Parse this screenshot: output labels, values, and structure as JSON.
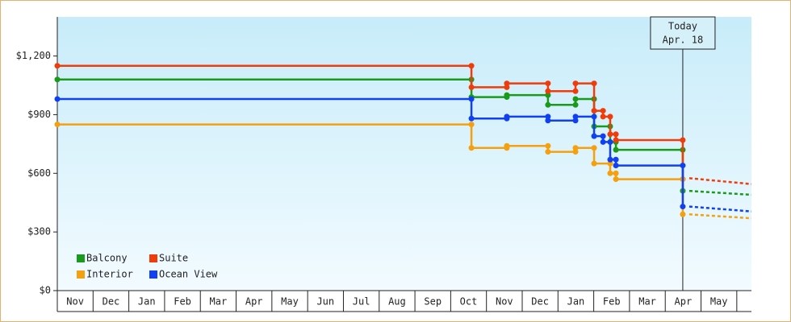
{
  "chart_data": {
    "type": "step-line",
    "xlim": [
      0,
      19.41
    ],
    "ylim": [
      0,
      1400
    ],
    "xticks": [
      {
        "value": 0.5,
        "label": "Nov"
      },
      {
        "value": 1.5,
        "label": "Dec"
      },
      {
        "value": 2.5,
        "label": "Jan"
      },
      {
        "value": 3.5,
        "label": "Feb"
      },
      {
        "value": 4.5,
        "label": "Mar"
      },
      {
        "value": 5.5,
        "label": "Apr"
      },
      {
        "value": 6.5,
        "label": "May"
      },
      {
        "value": 7.5,
        "label": "Jun"
      },
      {
        "value": 8.5,
        "label": "Jul"
      },
      {
        "value": 9.5,
        "label": "Aug"
      },
      {
        "value": 10.5,
        "label": "Sep"
      },
      {
        "value": 11.5,
        "label": "Oct"
      },
      {
        "value": 12.5,
        "label": "Nov"
      },
      {
        "value": 13.5,
        "label": "Dec"
      },
      {
        "value": 14.5,
        "label": "Jan"
      },
      {
        "value": 15.5,
        "label": "Feb"
      },
      {
        "value": 16.5,
        "label": "Mar"
      },
      {
        "value": 17.5,
        "label": "Apr"
      },
      {
        "value": 18.5,
        "label": "May"
      }
    ],
    "yticks": [
      {
        "value": 0,
        "label": "$0"
      },
      {
        "value": 300,
        "label": "$300"
      },
      {
        "value": 600,
        "label": "$600"
      },
      {
        "value": 900,
        "label": "$900"
      },
      {
        "value": 1200,
        "label": "$1,200"
      }
    ],
    "legend": "lower left",
    "series": [
      {
        "name": "Balcony",
        "color": "#1a9a1a",
        "x": [
          0,
          11.58,
          12.57,
          13.72,
          14.49,
          15.01,
          15.46,
          15.62,
          17.49
        ],
        "values": [
          1080,
          990,
          1000,
          950,
          980,
          840,
          760,
          720,
          510
        ],
        "forecast": {
          "x": [
            17.49,
            19.41
          ],
          "values": [
            510,
            490
          ]
        }
      },
      {
        "name": "Suite",
        "color": "#f03c0a",
        "x": [
          0,
          11.58,
          12.57,
          13.72,
          14.49,
          15.01,
          15.26,
          15.46,
          15.62,
          17.49
        ],
        "values": [
          1150,
          1040,
          1060,
          1020,
          1060,
          920,
          890,
          800,
          770,
          570
        ],
        "forecast": {
          "x": [
            17.49,
            19.41
          ],
          "values": [
            575,
            545
          ]
        }
      },
      {
        "name": "Interior",
        "color": "#f5a00f",
        "x": [
          0,
          11.58,
          12.57,
          13.72,
          14.49,
          15.01,
          15.46,
          15.62,
          17.49
        ],
        "values": [
          850,
          730,
          740,
          710,
          730,
          650,
          600,
          570,
          390
        ],
        "forecast": {
          "x": [
            17.49,
            19.41
          ],
          "values": [
            390,
            370
          ]
        }
      },
      {
        "name": "Ocean View",
        "color": "#1040f0",
        "x": [
          0,
          11.58,
          12.57,
          13.72,
          14.49,
          15.01,
          15.26,
          15.46,
          15.62,
          17.49
        ],
        "values": [
          980,
          880,
          890,
          870,
          890,
          790,
          760,
          670,
          640,
          430
        ],
        "forecast": {
          "x": [
            17.49,
            19.41
          ],
          "values": [
            430,
            405
          ]
        }
      }
    ],
    "annotation": {
      "x": 17.49,
      "lines": [
        "Today",
        "Apr. 18"
      ]
    }
  }
}
